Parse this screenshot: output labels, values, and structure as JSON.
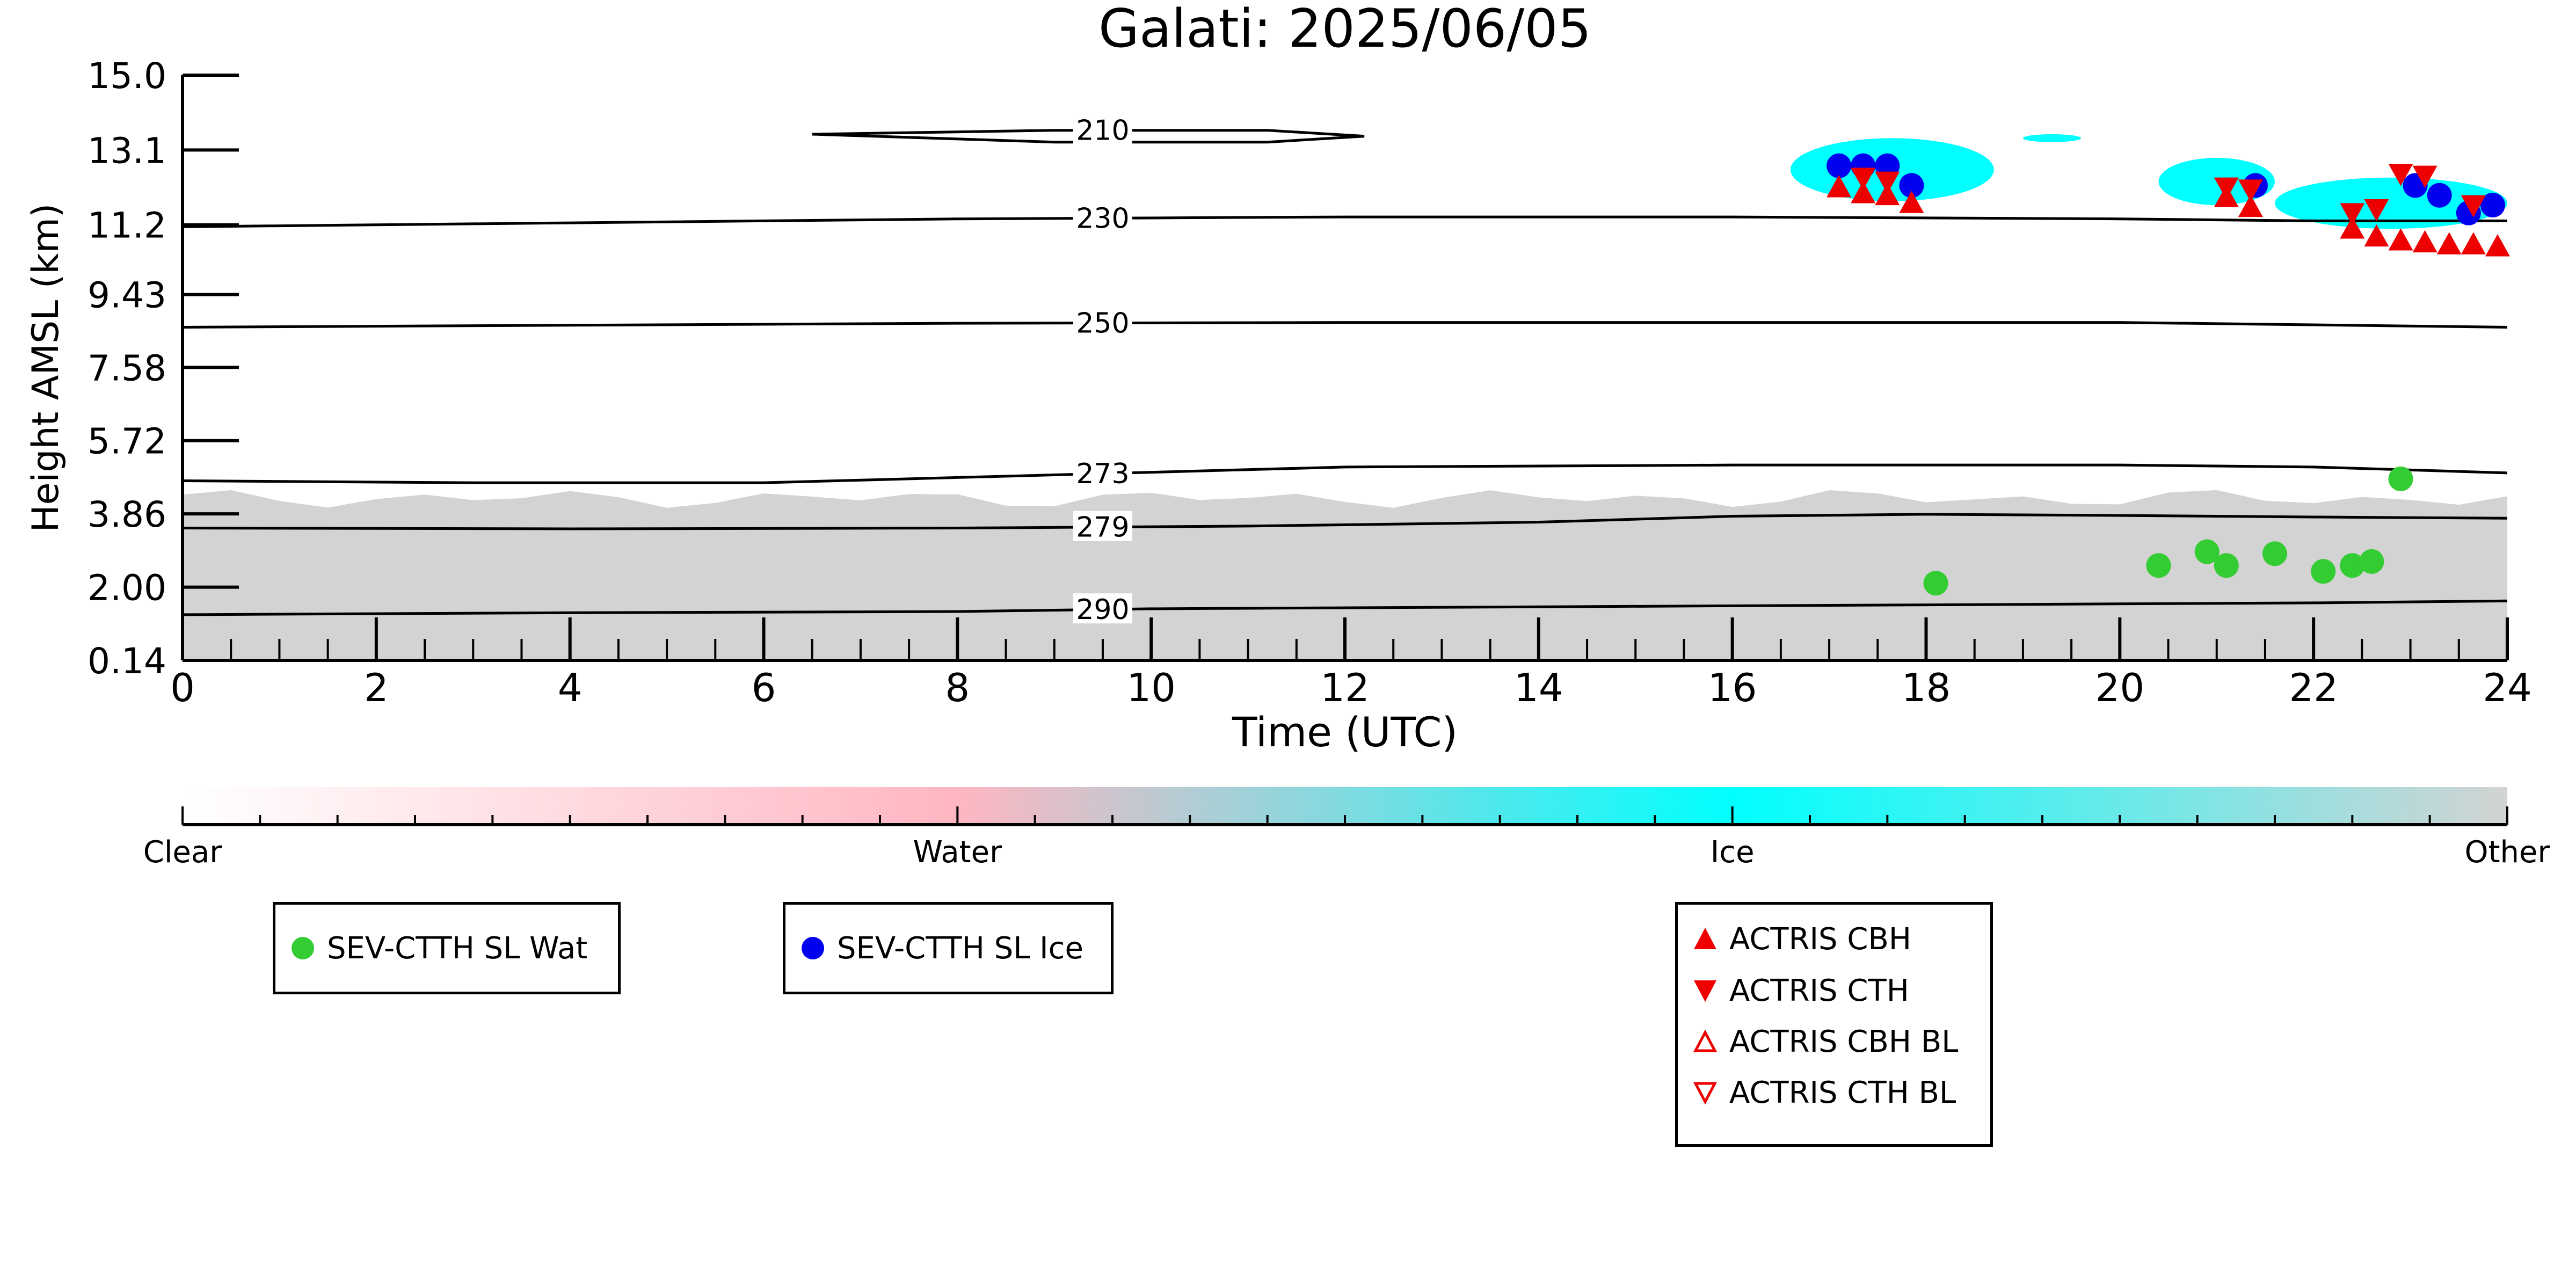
{
  "chart_data": {
    "type": "scatter",
    "title": "Galati: 2025/06/05",
    "xlabel": "Time (UTC)",
    "ylabel": "Height AMSL (km)",
    "xlim": [
      0,
      24
    ],
    "ylim": [
      0.14,
      15.0
    ],
    "x_ticks": [
      "0",
      "2",
      "4",
      "6",
      "8",
      "10",
      "12",
      "14",
      "16",
      "18",
      "20",
      "22",
      "24"
    ],
    "y_ticks": [
      "0.14",
      "2.00",
      "3.86",
      "5.72",
      "7.58",
      "9.43",
      "11.2",
      "13.1",
      "15.0"
    ],
    "grid": false,
    "background_classes": {
      "labels": [
        "Clear",
        "Water",
        "Ice",
        "Other"
      ],
      "colors": [
        "#ffffff",
        "#ffb6c1",
        "#00ffff",
        "#d3d3d3"
      ],
      "other_region": [
        {
          "x": [
            0,
            24
          ],
          "y_top_approx": 4.6
        }
      ],
      "ice_regions": [
        {
          "x": [
            16.6,
            18.7
          ],
          "y": [
            11.8,
            13.4
          ]
        },
        {
          "x": [
            19.0,
            19.6
          ],
          "y": [
            13.3,
            13.5
          ]
        },
        {
          "x": [
            20.4,
            21.6
          ],
          "y": [
            11.7,
            12.9
          ]
        },
        {
          "x": [
            21.6,
            24.0
          ],
          "y": [
            11.1,
            12.4
          ]
        }
      ]
    },
    "isotherms": [
      {
        "label": "210",
        "x": [
          6.5,
          9.0,
          11.2,
          12.2,
          11.2,
          9.0,
          6.5
        ],
        "y": [
          13.5,
          13.6,
          13.6,
          13.45,
          13.3,
          13.3,
          13.5
        ]
      },
      {
        "label": "230",
        "x": [
          0,
          4,
          8,
          12,
          16,
          20,
          22,
          24
        ],
        "y": [
          11.15,
          11.25,
          11.35,
          11.4,
          11.4,
          11.35,
          11.3,
          11.3
        ]
      },
      {
        "label": "250",
        "x": [
          0,
          4,
          8,
          12,
          16,
          20,
          24
        ],
        "y": [
          8.6,
          8.65,
          8.7,
          8.72,
          8.72,
          8.72,
          8.6
        ]
      },
      {
        "label": "273",
        "x": [
          0,
          3,
          6,
          9,
          12,
          16,
          20,
          22,
          24
        ],
        "y": [
          4.7,
          4.65,
          4.65,
          4.85,
          5.05,
          5.1,
          5.1,
          5.05,
          4.9
        ]
      },
      {
        "label": "279",
        "x": [
          0,
          4,
          8,
          11,
          14,
          16,
          18,
          20,
          22,
          24
        ],
        "y": [
          3.5,
          3.48,
          3.5,
          3.55,
          3.65,
          3.8,
          3.85,
          3.82,
          3.78,
          3.75
        ]
      },
      {
        "label": "290",
        "x": [
          0,
          4,
          8,
          10,
          14,
          18,
          22,
          24
        ],
        "y": [
          1.3,
          1.35,
          1.38,
          1.45,
          1.5,
          1.55,
          1.6,
          1.65
        ]
      }
    ],
    "series": [
      {
        "name": "SEV-CTTH SL Wat",
        "marker": "circle",
        "color": "#33cc33",
        "x": [
          18.1,
          20.4,
          20.9,
          21.1,
          21.6,
          22.1,
          22.4,
          22.6,
          22.9
        ],
        "y": [
          2.1,
          2.55,
          2.9,
          2.55,
          2.85,
          2.4,
          2.55,
          2.65,
          4.75
        ]
      },
      {
        "name": "SEV-CTTH SL Ice",
        "marker": "circle",
        "color": "#0000ee",
        "x": [
          17.1,
          17.35,
          17.6,
          17.85,
          21.4,
          23.05,
          23.3,
          23.6,
          23.85
        ],
        "y": [
          12.7,
          12.7,
          12.7,
          12.2,
          12.2,
          12.2,
          11.95,
          11.5,
          11.7
        ]
      },
      {
        "name": "ACTRIS CBH",
        "marker": "triangle-up",
        "color": "#ee0000",
        "filled": true,
        "x": [
          17.1,
          17.35,
          17.6,
          17.85,
          21.1,
          21.35,
          22.4,
          22.65,
          22.9,
          23.15,
          23.4,
          23.65,
          23.9
        ],
        "y": [
          12.15,
          12.0,
          11.95,
          11.75,
          11.9,
          11.65,
          11.1,
          10.9,
          10.8,
          10.75,
          10.7,
          10.7,
          10.65
        ]
      },
      {
        "name": "ACTRIS CTH",
        "marker": "triangle-down",
        "color": "#ee0000",
        "filled": true,
        "x": [
          17.35,
          17.6,
          21.1,
          21.35,
          22.4,
          22.65,
          22.9,
          23.15,
          23.65
        ],
        "y": [
          12.4,
          12.3,
          12.15,
          12.1,
          11.5,
          11.6,
          12.5,
          12.45,
          11.7
        ]
      },
      {
        "name": "ACTRIS CBH BL",
        "marker": "triangle-up",
        "color": "#ee0000",
        "filled": false,
        "x": [],
        "y": []
      },
      {
        "name": "ACTRIS CTH BL",
        "marker": "triangle-down",
        "color": "#ee0000",
        "filled": false,
        "x": [],
        "y": []
      }
    ]
  },
  "legends": {
    "wat": {
      "label": "SEV-CTTH SL Wat",
      "icon": "green-circle-icon"
    },
    "ice": {
      "label": "SEV-CTTH SL Ice",
      "icon": "blue-circle-icon"
    },
    "actris": [
      {
        "label": "ACTRIS CBH",
        "icon": "filled-triangle-up-icon"
      },
      {
        "label": "ACTRIS CTH",
        "icon": "filled-triangle-down-icon"
      },
      {
        "label": "ACTRIS CBH BL",
        "icon": "open-triangle-up-icon"
      },
      {
        "label": "ACTRIS CTH BL",
        "icon": "open-triangle-down-icon"
      }
    ]
  }
}
